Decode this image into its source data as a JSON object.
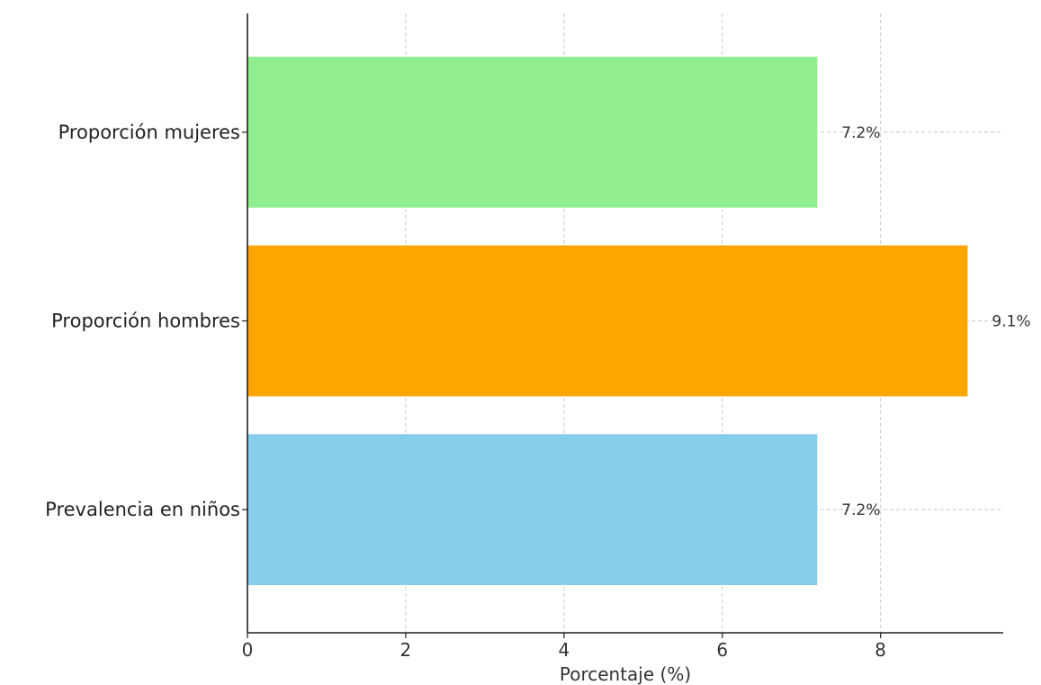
{
  "chart_data": {
    "type": "bar",
    "orientation": "horizontal",
    "categories": [
      "Prevalencia en niños",
      "Proporción hombres",
      "Proporción mujeres"
    ],
    "values": [
      7.2,
      9.1,
      7.2
    ],
    "value_labels": [
      "7.2%",
      "9.1%",
      "7.2%"
    ],
    "colors": [
      "#87CEEB",
      "#FFA500",
      "#90EE90"
    ],
    "title": "",
    "xlabel": "Porcentaje (%)",
    "ylabel": "",
    "xlim": [
      0,
      9.55
    ],
    "xticks": [
      0,
      2,
      4,
      6,
      8
    ],
    "grid": true
  }
}
